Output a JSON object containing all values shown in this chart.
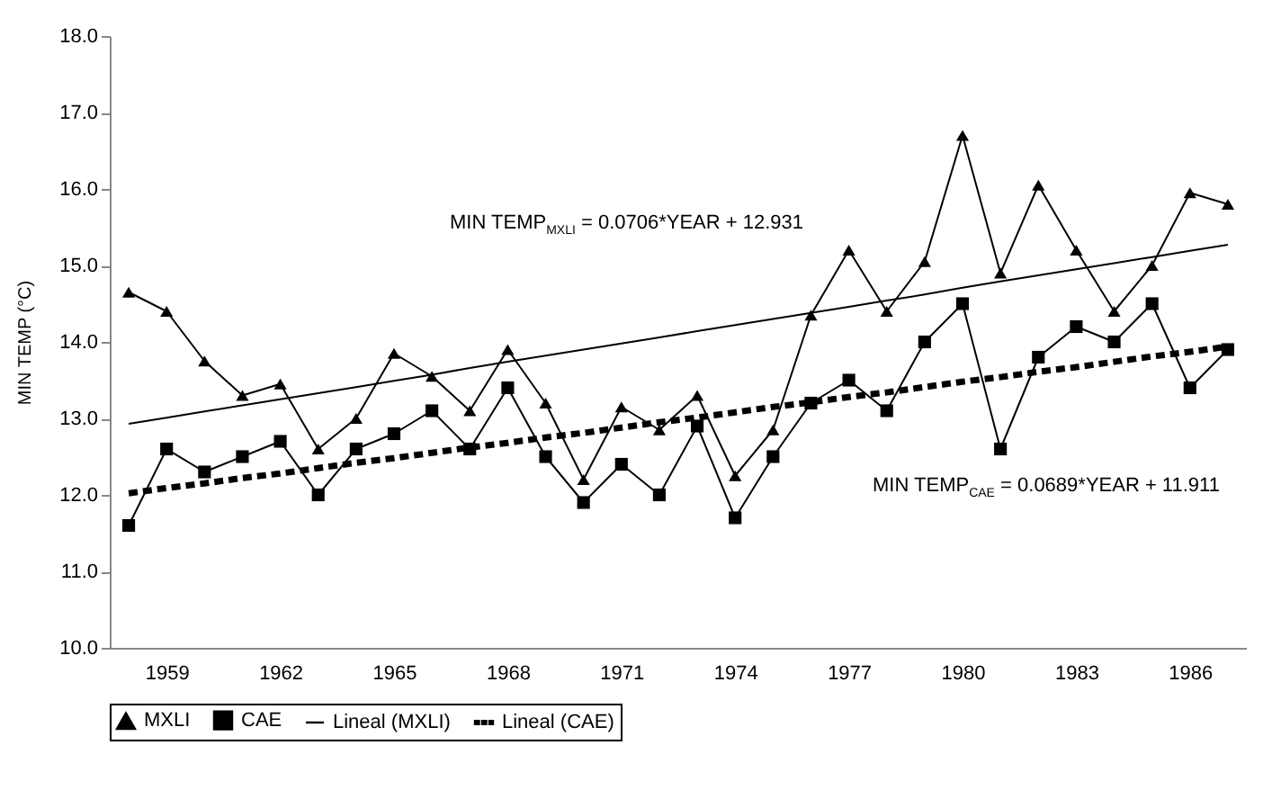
{
  "chart_data": {
    "type": "line",
    "ylabel": "MIN TEMP (°C)",
    "categories": [
      null,
      "1959",
      null,
      null,
      "1962",
      null,
      null,
      "1965",
      null,
      null,
      "1968",
      null,
      null,
      "1971",
      null,
      null,
      "1974",
      null,
      null,
      "1977",
      null,
      null,
      "1980",
      null,
      null,
      "1983",
      null,
      null,
      "1986",
      null
    ],
    "ylim": [
      10,
      18
    ],
    "yticks": [
      {
        "value": 10,
        "label": "10.0"
      },
      {
        "value": 11,
        "label": "11.0"
      },
      {
        "value": 12,
        "label": "12.0"
      },
      {
        "value": 13,
        "label": "13.0"
      },
      {
        "value": 14,
        "label": "14.0"
      },
      {
        "value": 15,
        "label": "15.0"
      },
      {
        "value": 16,
        "label": "16.0"
      },
      {
        "value": 17,
        "label": "17.0"
      },
      {
        "value": 18,
        "label": "18.0"
      }
    ],
    "legend": "bottom",
    "grid": false,
    "annotations": [
      "MIN TEMP$_{MXLI}$ = 0.0706*YEAR + 12.931",
      "MIN TEMP$_{CAE}$ = 0.0689*YEAR + 11.911"
    ],
    "series": [
      {
        "name": "MXLI",
        "color": "#000000",
        "marker": "triangle",
        "line_style": "solid",
        "values": [
          14.65,
          14.4,
          13.75,
          13.3,
          13.45,
          12.6,
          13.0,
          13.85,
          13.55,
          13.1,
          13.9,
          13.2,
          12.2,
          13.15,
          12.85,
          13.3,
          12.25,
          12.85,
          14.35,
          15.2,
          14.4,
          15.05,
          16.7,
          14.9,
          16.05,
          15.2,
          14.4,
          15.0,
          15.95,
          15.8
        ]
      },
      {
        "name": "CAE",
        "color": "#000000",
        "marker": "square",
        "line_style": "solid",
        "values": [
          11.6,
          12.6,
          12.3,
          12.5,
          12.7,
          12.0,
          12.6,
          12.8,
          13.1,
          12.6,
          13.4,
          12.5,
          11.9,
          12.4,
          12.0,
          12.9,
          11.7,
          12.5,
          13.2,
          13.5,
          13.1,
          14.0,
          14.5,
          12.6,
          13.8,
          14.2,
          14.0,
          14.5,
          13.4,
          13.9
        ]
      },
      {
        "name": "Lineal (MXLI)",
        "color": "#000000",
        "marker": "none",
        "line_style": "solid",
        "values": [
          12.93,
          13.01,
          13.09,
          13.17,
          13.25,
          13.33,
          13.41,
          13.49,
          13.57,
          13.66,
          13.74,
          13.82,
          13.9,
          13.98,
          14.06,
          14.14,
          14.22,
          14.3,
          14.38,
          14.46,
          14.54,
          14.62,
          14.71,
          14.79,
          14.87,
          14.95,
          15.03,
          15.11,
          15.19,
          15.27
        ]
      },
      {
        "name": "Lineal (CAE)",
        "color": "#000000",
        "marker": "none",
        "line_style": "dashed",
        "values": [
          12.02,
          12.09,
          12.15,
          12.22,
          12.28,
          12.35,
          12.42,
          12.48,
          12.55,
          12.62,
          12.68,
          12.75,
          12.81,
          12.88,
          12.95,
          13.01,
          13.08,
          13.15,
          13.21,
          13.28,
          13.34,
          13.41,
          13.48,
          13.54,
          13.61,
          13.67,
          13.74,
          13.81,
          13.87,
          13.94
        ]
      }
    ]
  }
}
